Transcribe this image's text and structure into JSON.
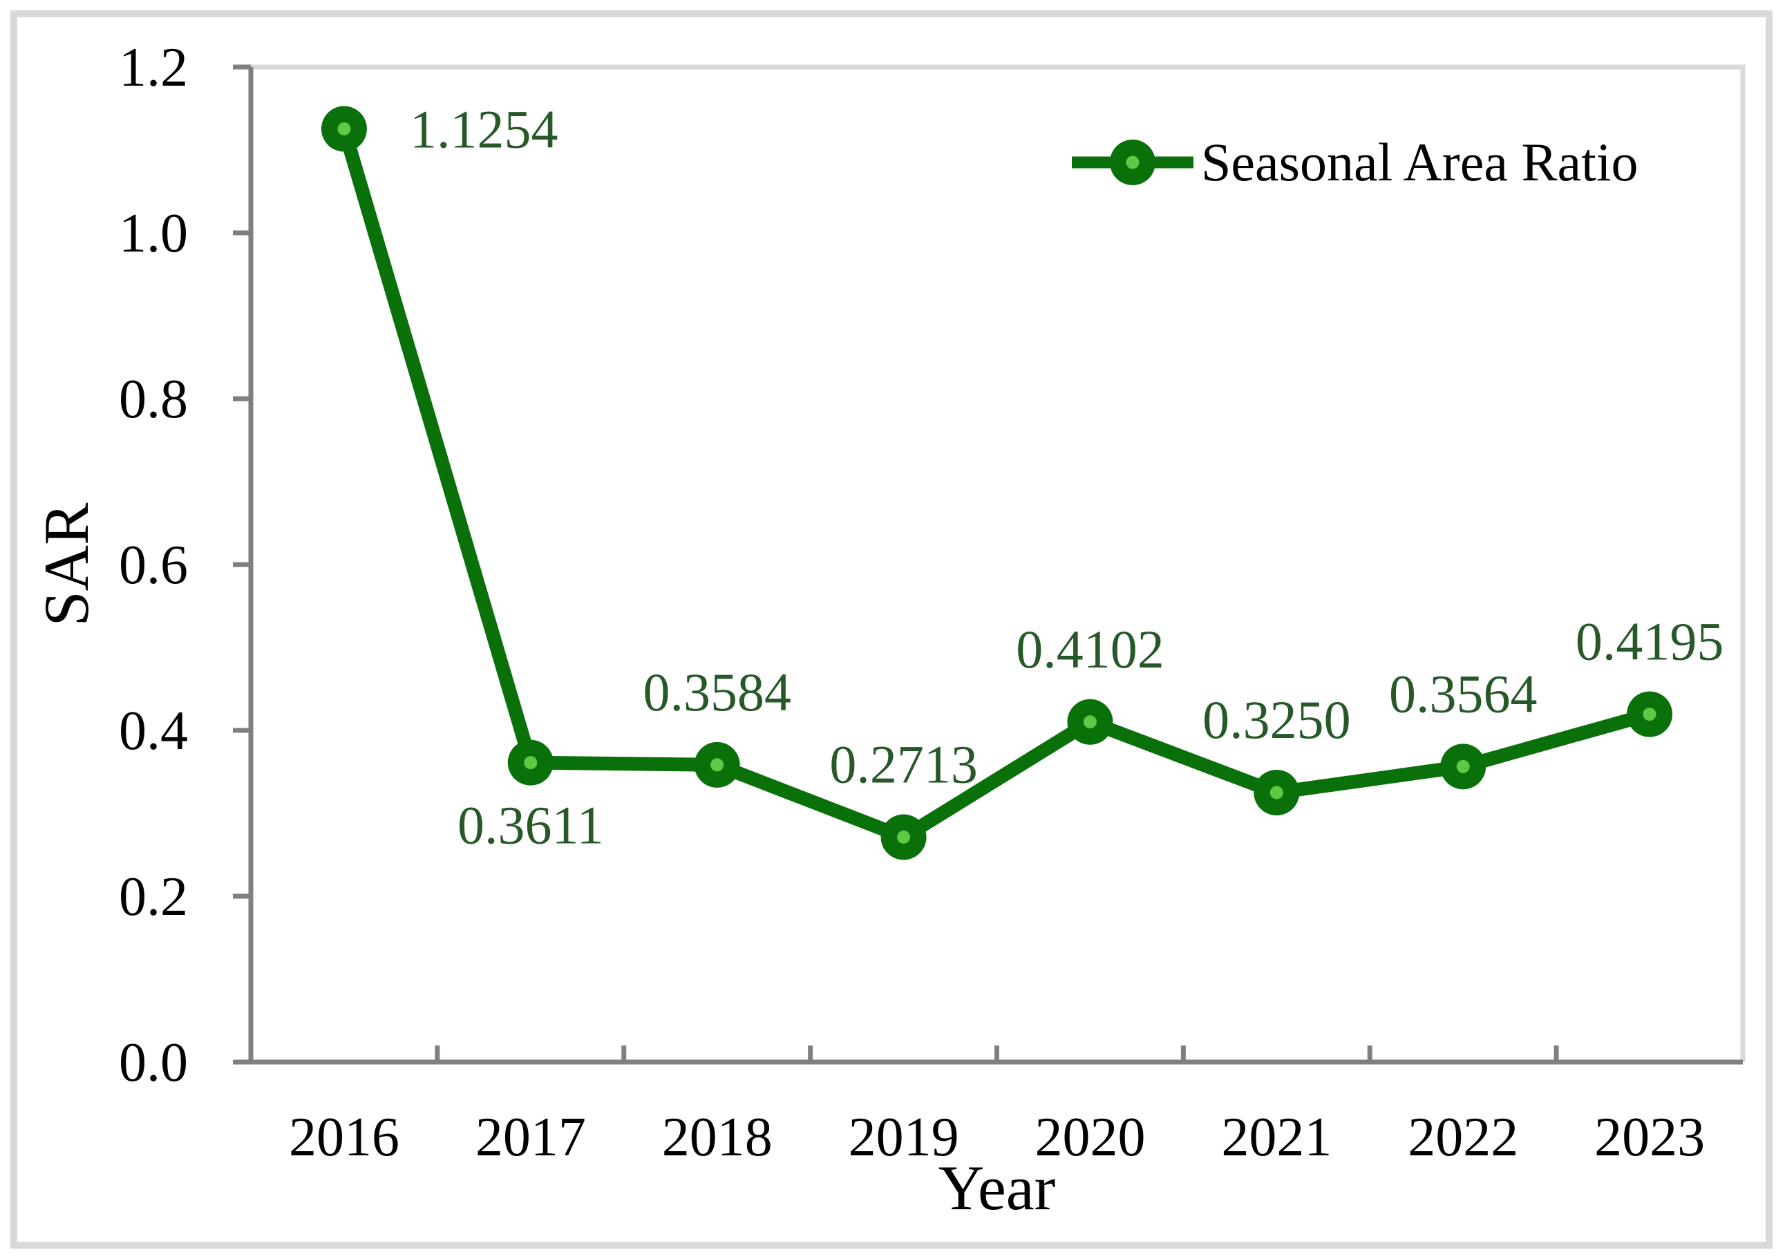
{
  "chart_data": {
    "type": "line",
    "title": "",
    "categories": [
      "2016",
      "2017",
      "2018",
      "2019",
      "2020",
      "2021",
      "2022",
      "2023"
    ],
    "series": [
      {
        "name": "Seasonal Area Ratio",
        "values": [
          1.1254,
          0.3611,
          0.3584,
          0.2713,
          0.4102,
          0.325,
          0.3564,
          0.4195
        ],
        "data_labels": [
          "1.1254",
          "0.3611",
          "0.3584",
          "0.2713",
          "0.4102",
          "0.3250",
          "0.3564",
          "0.4195"
        ],
        "label_placement": [
          "right",
          "below",
          "above",
          "above",
          "above",
          "above",
          "above",
          "above"
        ]
      }
    ],
    "xlabel": "Year",
    "ylabel": "SAR",
    "ylim": [
      0.0,
      1.2
    ],
    "ytick_labels": [
      "0.0",
      "0.2",
      "0.4",
      "0.6",
      "0.8",
      "1.0",
      "1.2"
    ],
    "grid": false,
    "legend": {
      "label": "Seasonal Area Ratio",
      "position": "top-right-inside"
    },
    "colors": {
      "series_line": "#0a710a",
      "marker_fill": "#0a710a",
      "marker_dot": "#5ec944",
      "data_label": "#265828",
      "axis_line": "#7f7f7f",
      "plot_border": "#d9d9d9",
      "figure_border": "#d9d9d9",
      "tick_label": "#000000",
      "axis_title": "#000000",
      "legend_text": "#000000",
      "background": "#ffffff"
    }
  }
}
